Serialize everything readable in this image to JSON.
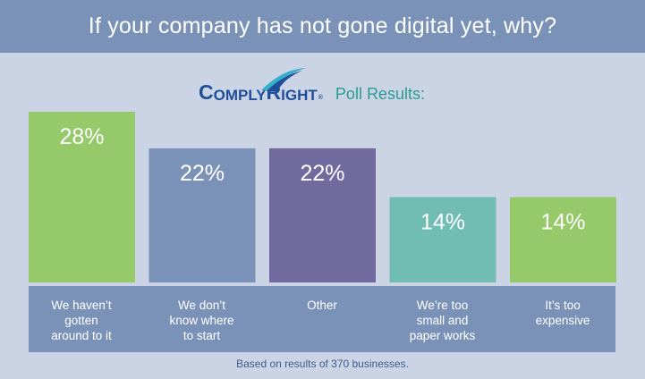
{
  "header": {
    "title": "If your company has not gone digital yet, why?"
  },
  "brand": {
    "logo_part1_big": "C",
    "logo_part1_small": "OMPLY",
    "logo_part2_big": "R",
    "logo_part2_small": "IGHT",
    "logo_tm": "®",
    "poll_label": "Poll Results:"
  },
  "chart_data": {
    "type": "bar",
    "categories": [
      "We haven’t\ngotten\naround to it",
      "We don’t\nknow where\nto start",
      "Other",
      "We’re too\nsmall and\npaper works",
      "It’s too\nexpensive"
    ],
    "values": [
      28,
      22,
      22,
      14,
      14
    ],
    "data_labels": [
      "28%",
      "22%",
      "22%",
      "14%",
      "14%"
    ],
    "colors": [
      "#95c96a",
      "#7b92b8",
      "#716a9f",
      "#71bcb3",
      "#95c96a"
    ],
    "ylim": [
      0,
      28
    ],
    "title": "If your company has not gone digital yet, why?",
    "xlabel": "",
    "ylabel": "",
    "grid": false,
    "legend": "none"
  },
  "footnote": "Based on results of 370 businesses."
}
